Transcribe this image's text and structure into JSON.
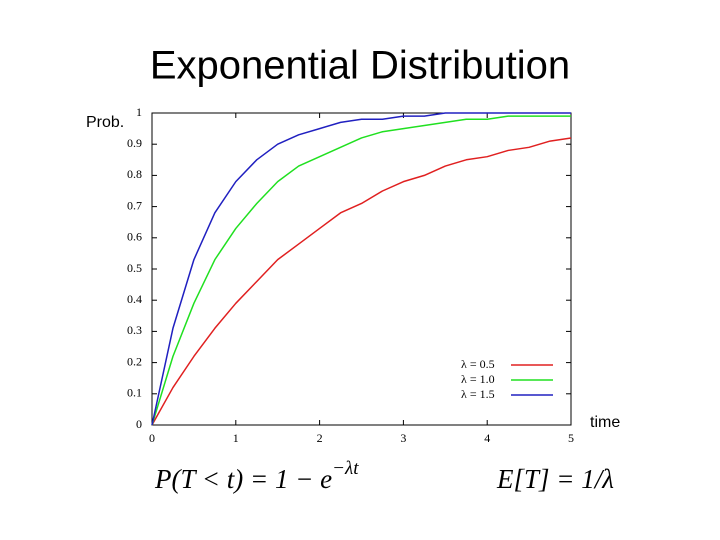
{
  "chart_data": {
    "type": "line",
    "title": "Exponential Distribution",
    "y_label": "Prob.",
    "x_label": "time",
    "x": [
      0,
      0.25,
      0.5,
      0.75,
      1,
      1.25,
      1.5,
      1.75,
      2,
      2.25,
      2.5,
      2.75,
      3,
      3.25,
      3.5,
      3.75,
      4,
      4.25,
      4.5,
      4.75,
      5
    ],
    "series": [
      {
        "name": "λ = 0.5",
        "color": "#e02020",
        "values": [
          0,
          0.12,
          0.22,
          0.31,
          0.39,
          0.46,
          0.53,
          0.58,
          0.63,
          0.68,
          0.71,
          0.75,
          0.78,
          0.8,
          0.83,
          0.85,
          0.86,
          0.88,
          0.89,
          0.91,
          0.92
        ]
      },
      {
        "name": "λ = 1.0",
        "color": "#20e020",
        "values": [
          0,
          0.22,
          0.39,
          0.53,
          0.63,
          0.71,
          0.78,
          0.83,
          0.86,
          0.89,
          0.92,
          0.94,
          0.95,
          0.96,
          0.97,
          0.98,
          0.98,
          0.99,
          0.99,
          0.99,
          0.99
        ]
      },
      {
        "name": "λ = 1.5",
        "color": "#2020c0",
        "values": [
          0,
          0.31,
          0.53,
          0.68,
          0.78,
          0.85,
          0.9,
          0.93,
          0.95,
          0.97,
          0.98,
          0.98,
          0.99,
          0.99,
          1,
          1,
          1,
          1,
          1,
          1,
          1
        ]
      }
    ],
    "xlim": [
      0,
      5
    ],
    "xticks": [
      0,
      1,
      2,
      3,
      4,
      5
    ],
    "ylim": [
      0,
      1
    ],
    "yticks": [
      0,
      0.1,
      0.2,
      0.3,
      0.4,
      0.5,
      0.6,
      0.7,
      0.8,
      0.9,
      1
    ],
    "legend": "lower-right"
  },
  "formulas": [
    {
      "main": "P(T < t) = 1 − e",
      "superscript": "−λt"
    },
    {
      "main": "E[T] = 1/λ"
    }
  ]
}
